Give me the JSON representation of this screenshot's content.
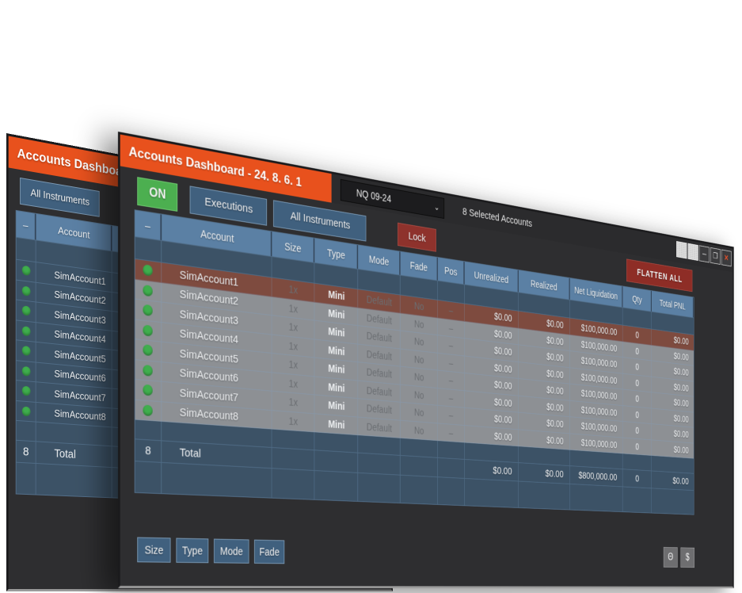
{
  "colors": {
    "accent_orange": "#e8511d",
    "on_green": "#4caf50",
    "danger_red": "#8e2d26",
    "header_blue": "#5b80a4",
    "table_blue": "#3c5266",
    "selected_row_brown": "#7e4b3f",
    "disabled_gray": "#8d9094",
    "dot_green": "#3fae4d"
  },
  "back_window": {
    "title": "Accounts Dashboard -",
    "toolbar": {
      "all_instruments": "All Instruments"
    },
    "table": {
      "headers": {
        "dash": "–",
        "account": "Account"
      },
      "accounts": [
        "SimAccount1",
        "SimAccount2",
        "SimAccount3",
        "SimAccount4",
        "SimAccount5",
        "SimAccount6",
        "SimAccount7",
        "SimAccount8"
      ],
      "total": {
        "count": "8",
        "label": "Total"
      }
    }
  },
  "front_window": {
    "title": "Accounts Dashboard - 24. 8. 6. 1",
    "titlebar": {
      "instrument": "NQ 09-24",
      "chevron": "⌄",
      "selected_accounts": "8 Selected Accounts"
    },
    "window_controls": {
      "minimize": "─",
      "restore": "❐",
      "close": "✕"
    },
    "toolbar": {
      "on": "ON",
      "executions": "Executions",
      "all_instruments": "All Instruments",
      "lock": "Lock",
      "flatten_all": "FLATTEN ALL"
    },
    "table": {
      "headers": [
        "–",
        "Account",
        "Size",
        "Type",
        "Mode",
        "Fade",
        "Pos",
        "Unrealized",
        "Realized",
        "Net Liquidation",
        "Qty",
        "Total PNL"
      ],
      "rows": [
        {
          "name": "SimAccount1",
          "size": "1x",
          "type": "Mini",
          "mode": "Default",
          "fade": "No",
          "pos": "–",
          "unrealized": "$0.00",
          "realized": "$0.00",
          "net_liquidation": "$100,000.00",
          "qty": "0",
          "total_pnl": "$0.00"
        },
        {
          "name": "SimAccount2",
          "size": "1x",
          "type": "Mini",
          "mode": "Default",
          "fade": "No",
          "pos": "–",
          "unrealized": "$0.00",
          "realized": "$0.00",
          "net_liquidation": "$100,000.00",
          "qty": "0",
          "total_pnl": "$0.00"
        },
        {
          "name": "SimAccount3",
          "size": "1x",
          "type": "Mini",
          "mode": "Default",
          "fade": "No",
          "pos": "–",
          "unrealized": "$0.00",
          "realized": "$0.00",
          "net_liquidation": "$100,000.00",
          "qty": "0",
          "total_pnl": "$0.00"
        },
        {
          "name": "SimAccount4",
          "size": "1x",
          "type": "Mini",
          "mode": "Default",
          "fade": "No",
          "pos": "–",
          "unrealized": "$0.00",
          "realized": "$0.00",
          "net_liquidation": "$100,000.00",
          "qty": "0",
          "total_pnl": "$0.00"
        },
        {
          "name": "SimAccount5",
          "size": "1x",
          "type": "Mini",
          "mode": "Default",
          "fade": "No",
          "pos": "–",
          "unrealized": "$0.00",
          "realized": "$0.00",
          "net_liquidation": "$100,000.00",
          "qty": "0",
          "total_pnl": "$0.00"
        },
        {
          "name": "SimAccount6",
          "size": "1x",
          "type": "Mini",
          "mode": "Default",
          "fade": "No",
          "pos": "–",
          "unrealized": "$0.00",
          "realized": "$0.00",
          "net_liquidation": "$100,000.00",
          "qty": "0",
          "total_pnl": "$0.00"
        },
        {
          "name": "SimAccount7",
          "size": "1x",
          "type": "Mini",
          "mode": "Default",
          "fade": "No",
          "pos": "–",
          "unrealized": "$0.00",
          "realized": "$0.00",
          "net_liquidation": "$100,000.00",
          "qty": "0",
          "total_pnl": "$0.00"
        },
        {
          "name": "SimAccount8",
          "size": "1x",
          "type": "Mini",
          "mode": "Default",
          "fade": "No",
          "pos": "–",
          "unrealized": "$0.00",
          "realized": "$0.00",
          "net_liquidation": "$100,000.00",
          "qty": "0",
          "total_pnl": "$0.00"
        }
      ],
      "total_row": {
        "count": "8",
        "label": "Total",
        "unrealized": "$0.00",
        "realized": "$0.00",
        "net_liquidation": "$800,000.00",
        "qty": "0",
        "total_pnl": "$0.00"
      }
    },
    "footer": {
      "size": "Size",
      "type": "Type",
      "mode": "Mode",
      "fade": "Fade",
      "theta": "Θ",
      "dollar": "$"
    }
  }
}
